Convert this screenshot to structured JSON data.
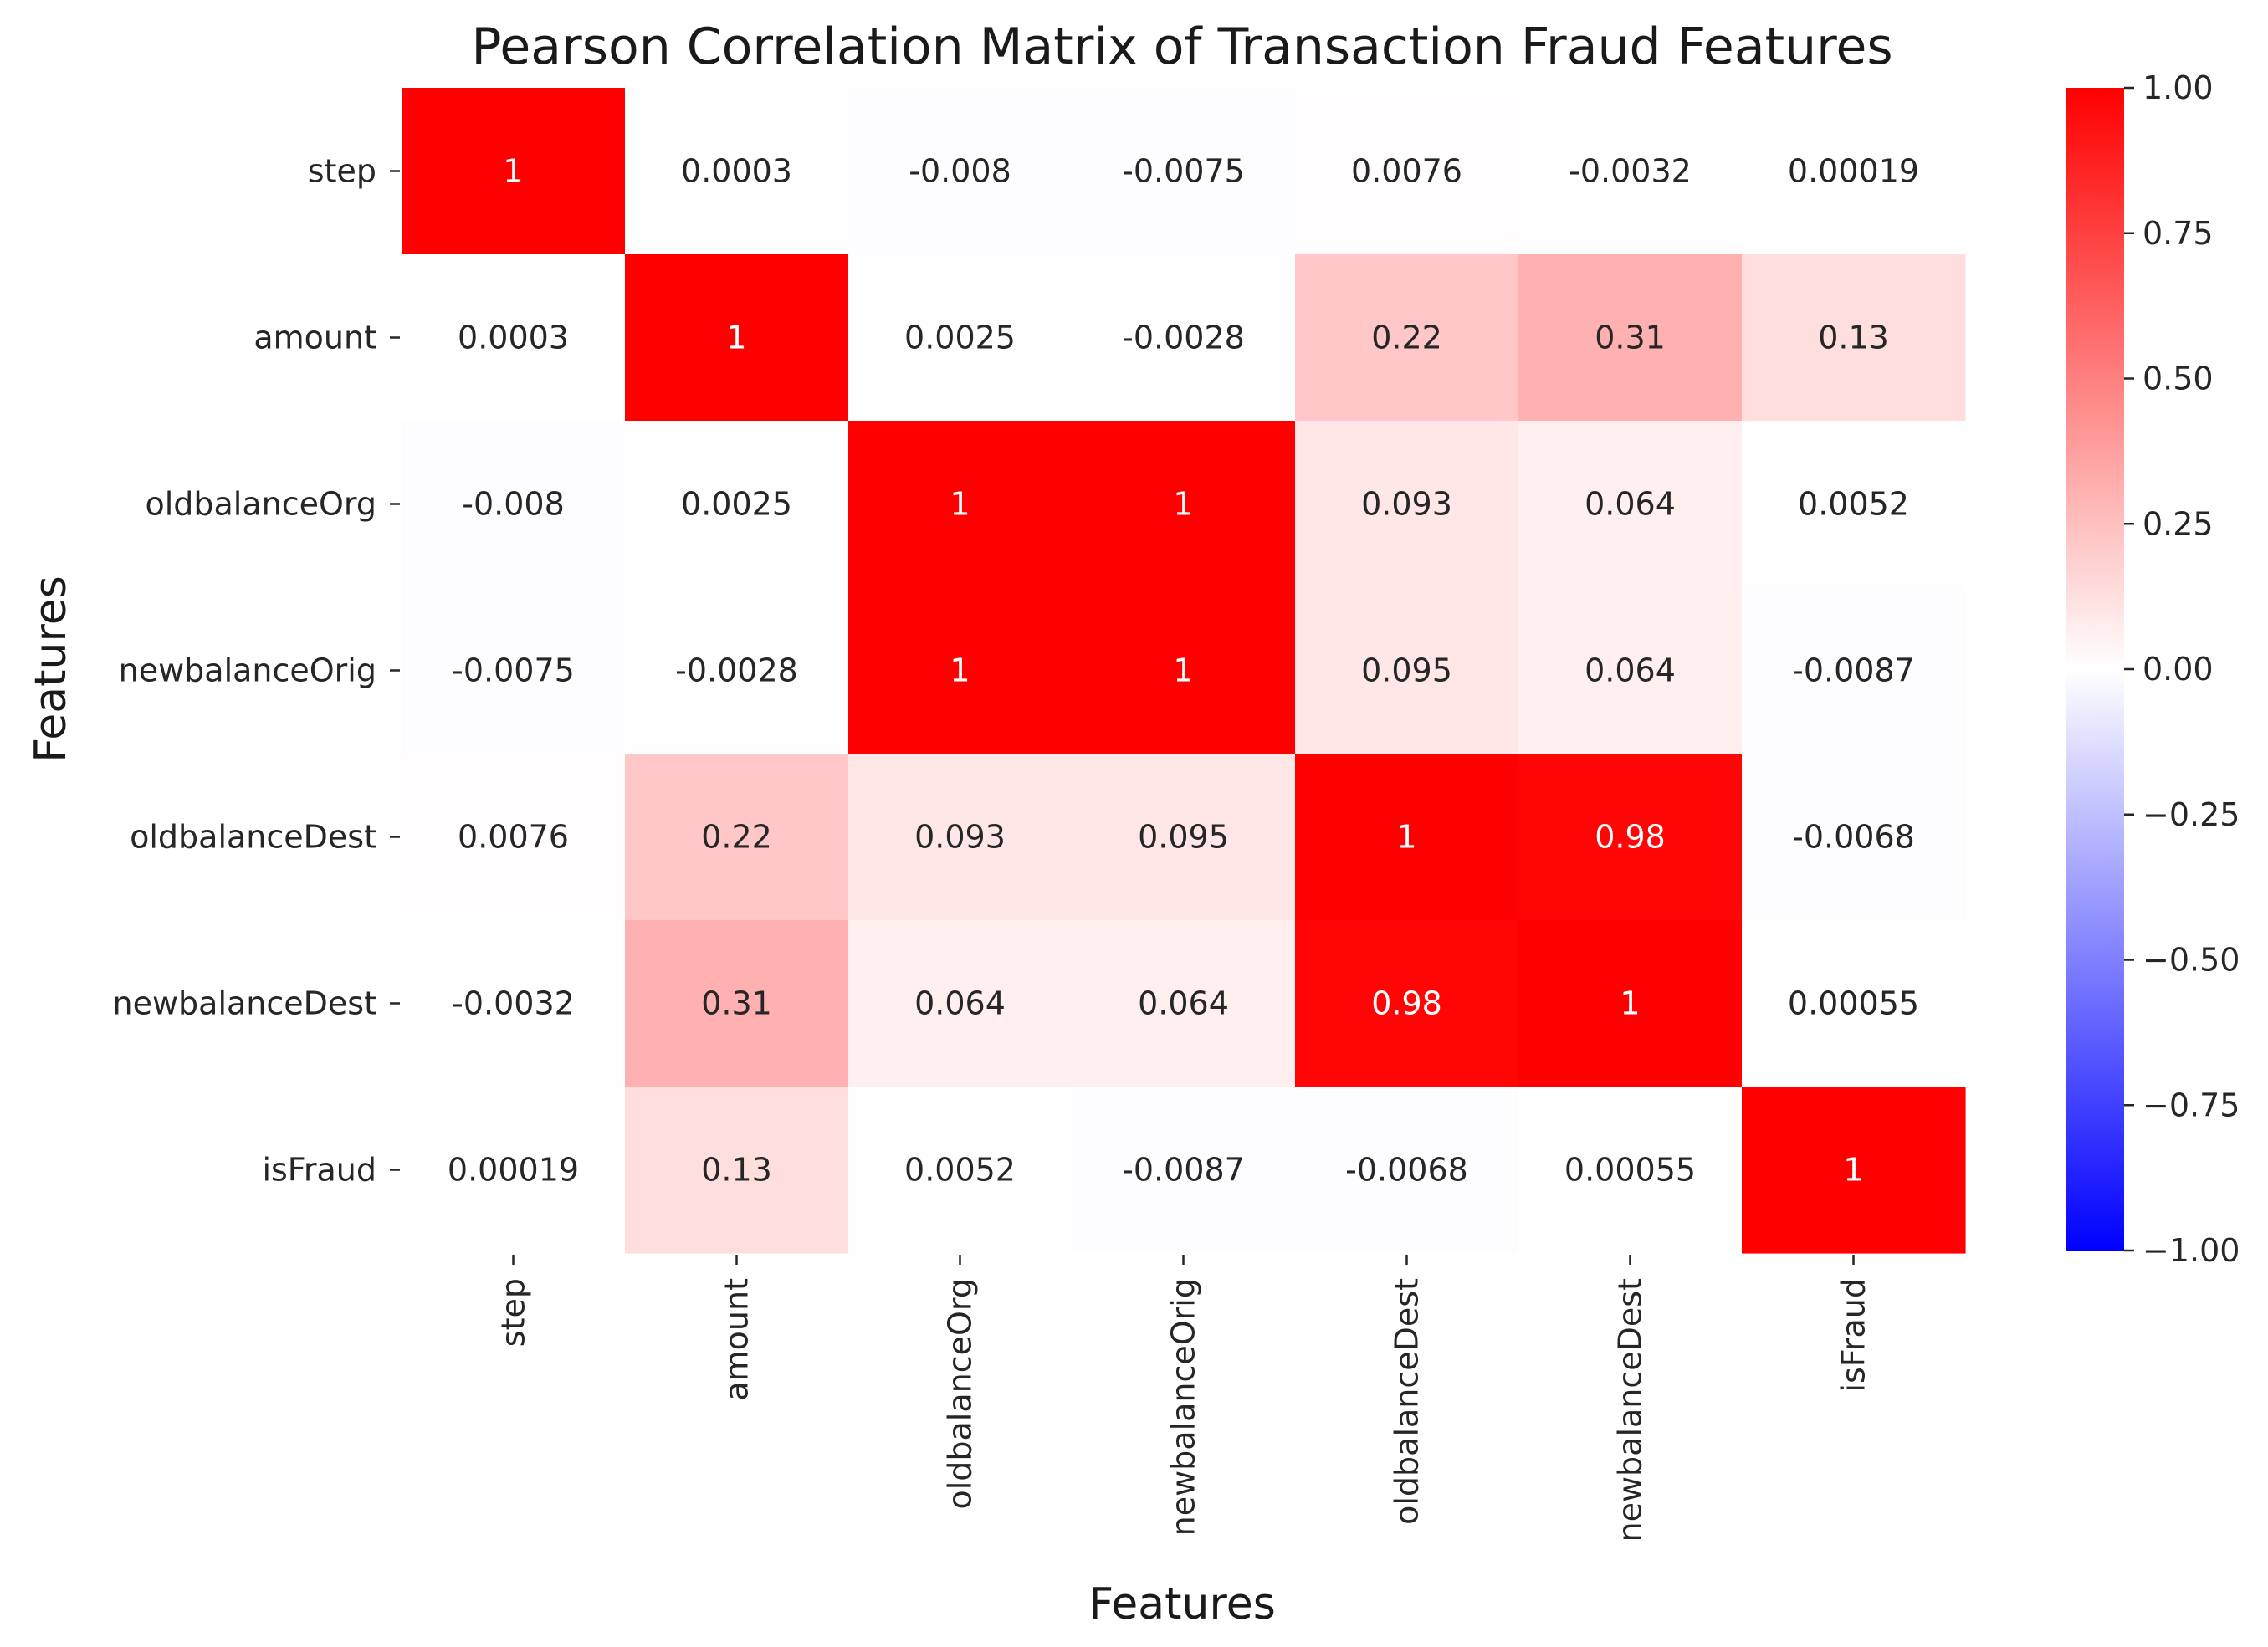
{
  "chart_data": {
    "type": "heatmap",
    "title": "Pearson Correlation Matrix of Transaction Fraud Features",
    "xlabel": "Features",
    "ylabel": "Features",
    "categories": [
      "step",
      "amount",
      "oldbalanceOrg",
      "newbalanceOrig",
      "oldbalanceDest",
      "newbalanceDest",
      "isFraud"
    ],
    "matrix": [
      [
        1,
        0.0003,
        -0.008,
        -0.0075,
        0.0076,
        -0.0032,
        0.00019
      ],
      [
        0.0003,
        1,
        0.0025,
        -0.0028,
        0.22,
        0.31,
        0.13
      ],
      [
        -0.008,
        0.0025,
        1,
        1,
        0.093,
        0.064,
        0.0052
      ],
      [
        -0.0075,
        -0.0028,
        1,
        1,
        0.095,
        0.064,
        -0.0087
      ],
      [
        0.0076,
        0.22,
        0.093,
        0.095,
        1,
        0.98,
        -0.0068
      ],
      [
        -0.0032,
        0.31,
        0.064,
        0.064,
        0.98,
        1,
        0.00055
      ],
      [
        0.00019,
        0.13,
        0.0052,
        -0.0087,
        -0.0068,
        0.00055,
        1
      ]
    ],
    "labels": [
      [
        "1",
        "0.0003",
        "-0.008",
        "-0.0075",
        "0.0076",
        "-0.0032",
        "0.00019"
      ],
      [
        "0.0003",
        "1",
        "0.0025",
        "-0.0028",
        "0.22",
        "0.31",
        "0.13"
      ],
      [
        "-0.008",
        "0.0025",
        "1",
        "1",
        "0.093",
        "0.064",
        "0.0052"
      ],
      [
        "-0.0075",
        "-0.0028",
        "1",
        "1",
        "0.095",
        "0.064",
        "-0.0087"
      ],
      [
        "0.0076",
        "0.22",
        "0.093",
        "0.095",
        "1",
        "0.98",
        "-0.0068"
      ],
      [
        "-0.0032",
        "0.31",
        "0.064",
        "0.064",
        "0.98",
        "1",
        "0.00055"
      ],
      [
        "0.00019",
        "0.13",
        "0.0052",
        "-0.0087",
        "-0.0068",
        "0.00055",
        "1"
      ]
    ],
    "colorscale": "bwr",
    "vmin": -1,
    "vmax": 1,
    "colorbar_ticks": [
      1.0,
      0.75,
      0.5,
      0.25,
      0.0,
      -0.25,
      -0.5,
      -0.75,
      -1.0
    ],
    "colorbar_tick_labels": [
      "1.00",
      "0.75",
      "0.50",
      "0.25",
      "0.00",
      "−0.25",
      "−0.50",
      "−0.75",
      "−1.00"
    ],
    "colors": {
      "low": "#0000ff",
      "mid": "#ffffff",
      "high": "#ff0000"
    }
  }
}
